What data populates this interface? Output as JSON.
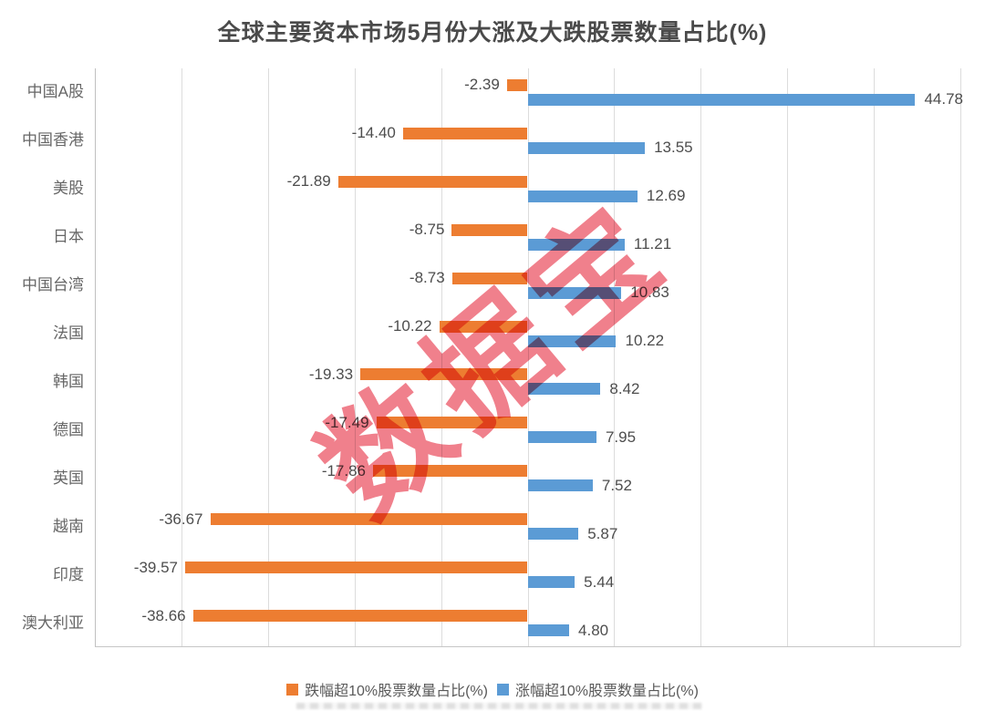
{
  "watermark": {
    "text": "数据宝",
    "color": "#F0808C"
  },
  "legend": {
    "items": [
      {
        "label": "跌幅超10%股票数量占比(%)",
        "color": "#ED7D31"
      },
      {
        "label": "涨幅超10%股票数量占比(%)",
        "color": "#5B9BD5"
      }
    ]
  },
  "chart_data": {
    "type": "bar",
    "orientation": "horizontal",
    "title": "全球主要资本市场5月份大涨及大跌股票数量占比(%)",
    "categories": [
      "中国A股",
      "中国香港",
      "美股",
      "日本",
      "中国台湾",
      "法国",
      "韩国",
      "德国",
      "英国",
      "越南",
      "印度",
      "澳大利亚"
    ],
    "series": [
      {
        "name": "跌幅超10%股票数量占比(%)",
        "color": "#ED7D31",
        "values": [
          -2.39,
          -14.4,
          -21.89,
          -8.75,
          -8.73,
          -10.22,
          -19.33,
          -17.49,
          -17.86,
          -36.67,
          -39.57,
          -38.66
        ]
      },
      {
        "name": "涨幅超10%股票数量占比(%)",
        "color": "#5B9BD5",
        "values": [
          44.78,
          13.55,
          12.69,
          11.21,
          10.83,
          10.22,
          8.42,
          7.95,
          7.52,
          5.87,
          5.44,
          4.8
        ]
      }
    ],
    "xlim": [
      -50,
      50
    ],
    "gridline_interval": 10,
    "grid": true,
    "x_tick_labels_visible": false,
    "data_labels": true,
    "legend_position": "bottom"
  }
}
